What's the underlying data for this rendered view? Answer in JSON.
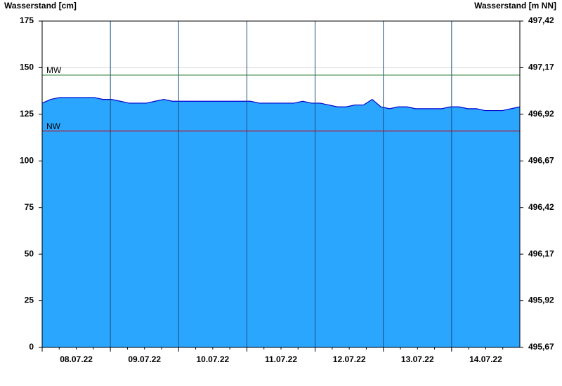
{
  "chart_data": {
    "type": "area",
    "y_label": "Wasserstand [cm]",
    "y2_label": "Wasserstand [m NN]",
    "categories": [
      "08.07.22",
      "09.07.22",
      "10.07.22",
      "11.07.22",
      "12.07.22",
      "13.07.22",
      "14.07.22"
    ],
    "values": [
      [
        131,
        133,
        134,
        134,
        134,
        134,
        134,
        133
      ],
      [
        133,
        132,
        131,
        131,
        131,
        132,
        133,
        132
      ],
      [
        132,
        132,
        132,
        132,
        132,
        132,
        132,
        132
      ],
      [
        132,
        131,
        131,
        131,
        131,
        131,
        132,
        131
      ],
      [
        131,
        130,
        129,
        129,
        130,
        130,
        133,
        129
      ],
      [
        128,
        129,
        129,
        128,
        128,
        128,
        128,
        129
      ],
      [
        129,
        128,
        128,
        127,
        127,
        127,
        128,
        129
      ]
    ],
    "color": "#2ba6ff",
    "line_color": "#0000cc",
    "ylim": [
      0,
      175
    ],
    "yticks": [
      0,
      25,
      50,
      75,
      100,
      125,
      150,
      175
    ],
    "y2lim": [
      495.67,
      497.42
    ],
    "y2ticks": [
      {
        "value": 495.67,
        "label": "495,67"
      },
      {
        "value": 495.92,
        "label": "495,92"
      },
      {
        "value": 496.17,
        "label": "496,17"
      },
      {
        "value": 496.42,
        "label": "496,42"
      },
      {
        "value": 496.67,
        "label": "496,67"
      },
      {
        "value": 496.92,
        "label": "496,92"
      },
      {
        "value": 497.17,
        "label": "497,17"
      },
      {
        "value": 497.42,
        "label": "497,42"
      }
    ],
    "reference_lines": [
      {
        "label": "MW",
        "value": 146,
        "color": "#2e7d32"
      },
      {
        "label": "NW",
        "value": 116,
        "color": "#cc0000"
      }
    ],
    "grid": true
  }
}
